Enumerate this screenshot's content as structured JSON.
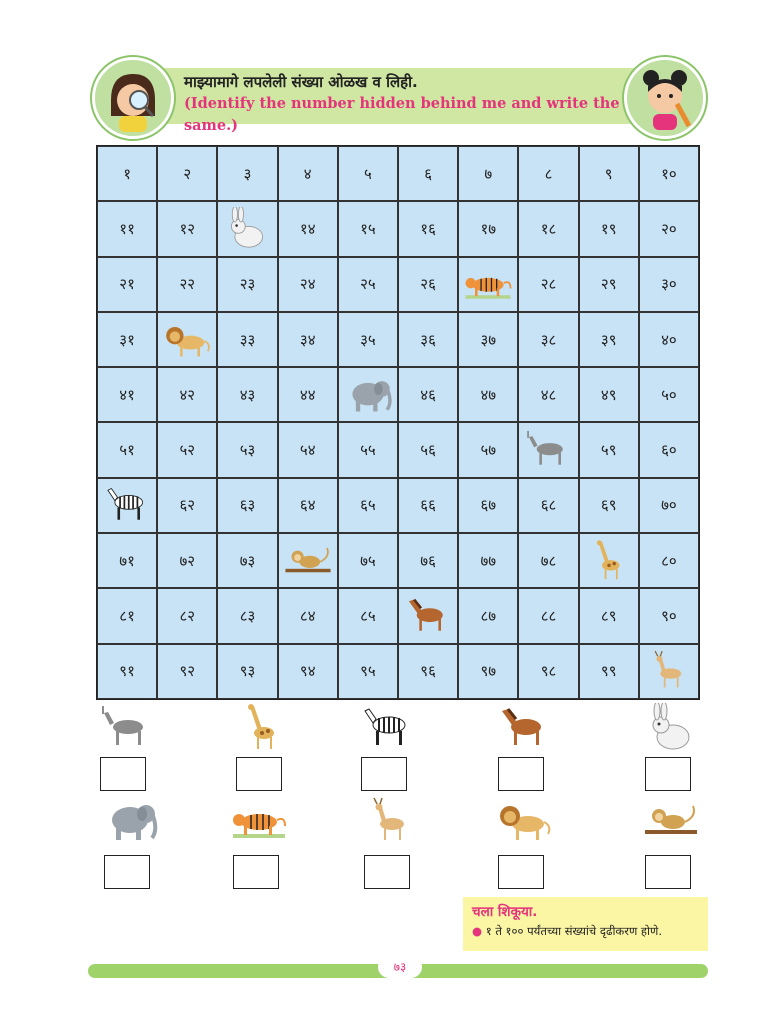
{
  "header": {
    "title_marathi": "माझ्यामागे लपलेली संख्या ओळख व लिही.",
    "title_english": "(Identify the number hidden behind me and write the same.)"
  },
  "grid": {
    "rows": [
      [
        "१",
        "२",
        "३",
        "४",
        "५",
        "६",
        "७",
        "८",
        "९",
        "१०"
      ],
      [
        "११",
        "१२",
        "rabbit",
        "१४",
        "१५",
        "१६",
        "१७",
        "१८",
        "१९",
        "२०"
      ],
      [
        "२१",
        "२२",
        "२३",
        "२४",
        "२५",
        "२६",
        "tiger",
        "२८",
        "२९",
        "३०"
      ],
      [
        "३१",
        "lion",
        "३३",
        "३४",
        "३५",
        "३६",
        "३७",
        "३८",
        "३९",
        "४०"
      ],
      [
        "४१",
        "४२",
        "४३",
        "४४",
        "elephant",
        "४६",
        "४७",
        "४८",
        "४९",
        "५०"
      ],
      [
        "५१",
        "५२",
        "५३",
        "५४",
        "५५",
        "५६",
        "५७",
        "donkey",
        "५९",
        "६०"
      ],
      [
        "zebra",
        "६२",
        "६३",
        "६४",
        "६५",
        "६६",
        "६७",
        "६८",
        "६९",
        "७०"
      ],
      [
        "७१",
        "७२",
        "७३",
        "monkey",
        "७५",
        "७६",
        "७७",
        "७८",
        "giraffe",
        "८०"
      ],
      [
        "८१",
        "८२",
        "८३",
        "८४",
        "८५",
        "horse",
        "८७",
        "८८",
        "८९",
        "९०"
      ],
      [
        "९१",
        "९२",
        "९३",
        "९४",
        "९५",
        "९६",
        "९७",
        "९८",
        "९९",
        "deer"
      ]
    ]
  },
  "answer_rows": [
    [
      "donkey",
      "giraffe",
      "zebra",
      "horse",
      "rabbit"
    ],
    [
      "elephant",
      "tiger",
      "deer",
      "lion",
      "monkey"
    ]
  ],
  "learn_box": {
    "title": "चला शिकूया.",
    "item": "१ ते १०० पर्यंतच्या संख्यांचे दृढीकरण होणे."
  },
  "footer": {
    "page_number": "७३"
  },
  "colors": {
    "grid_bg": "#c8e3f5",
    "accent_pink": "#e5337c",
    "banner_green": "#cfe7a3",
    "learn_bg": "#fbf6a4"
  }
}
